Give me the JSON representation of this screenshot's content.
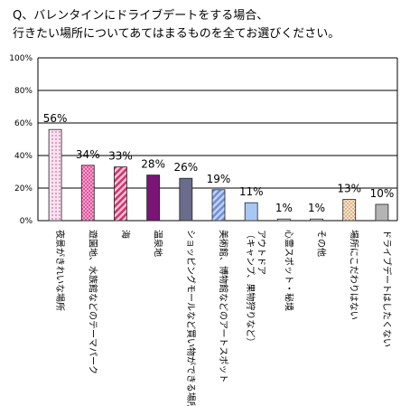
{
  "chart_data": {
    "type": "bar",
    "title": "Q、バレンタインにドライブデートをする場合、\n行きたい場所についてあてはまるものを全てお選びください。",
    "ylim": [
      0,
      100
    ],
    "y_ticks": [
      "0%",
      "20%",
      "40%",
      "60%",
      "80%",
      "100%"
    ],
    "grid": true,
    "categories": [
      "夜景がきれいな場所",
      "遊園地、水族館などのテーマパーク",
      "海",
      "温泉地",
      "ショッピングモールなど買い物ができる場所",
      "美術館、博物館などのアートスポット",
      "アウトドア\n（キャンプ、果物狩りなど）",
      "心霊スポット・秘境",
      "その他",
      "場所にこだわりはない",
      "ドライブデートはしたくない"
    ],
    "values": [
      56,
      34,
      33,
      28,
      26,
      19,
      11,
      1,
      1,
      13,
      10
    ],
    "value_labels": [
      "56%",
      "34%",
      "33%",
      "28%",
      "26%",
      "19%",
      "11%",
      "1%",
      "1%",
      "13%",
      "10%"
    ],
    "colors": [
      "#f6c8e0",
      "#f58cc4",
      "#e0457f",
      "#7a1477",
      "#707090",
      "#8fa6e0",
      "#9ec2f2",
      "#e8e8ee",
      "#e8e8ee",
      "#f4d8b8",
      "#bbbbbb"
    ]
  }
}
